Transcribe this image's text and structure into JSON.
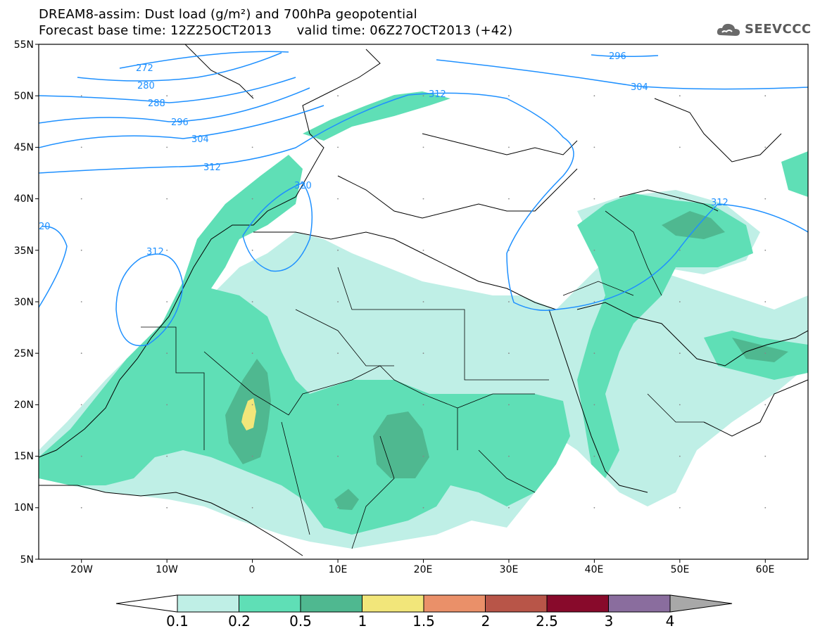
{
  "header": {
    "title_line1": "DREAM8-assim: Dust load (g/m²) and 700hPa geopotential",
    "title_line2": "Forecast base time: 12Z25OCT2013      valid time: 06Z27OCT2013 (+42)",
    "logo_text": "SEEVCCC"
  },
  "map": {
    "lon_range": [
      -25,
      65
    ],
    "lat_range": [
      5,
      55
    ],
    "lat_labels": [
      "55N",
      "50N",
      "45N",
      "40N",
      "35N",
      "30N",
      "25N",
      "20N",
      "15N",
      "10N",
      "5N"
    ],
    "lon_labels": [
      "20W",
      "10W",
      "0",
      "10E",
      "20E",
      "30E",
      "40E",
      "50E",
      "60E"
    ],
    "contour_color": "#1e90ff",
    "contour_labels": [
      "272",
      "280",
      "288",
      "296",
      "304",
      "312",
      "320",
      "20",
      "312",
      "296",
      "304",
      "312",
      "312"
    ]
  },
  "colorbar": {
    "ticks": [
      "0.1",
      "0.2",
      "0.5",
      "1",
      "1.5",
      "2",
      "2.5",
      "3",
      "4"
    ],
    "colors": [
      "#bfefe6",
      "#5fdfb6",
      "#4fb890",
      "#f2e67a",
      "#ea9069",
      "#b85548",
      "#880a2b",
      "#8a6d9e"
    ],
    "under_color": "#ffffff",
    "over_color": "#a8a8a8"
  }
}
